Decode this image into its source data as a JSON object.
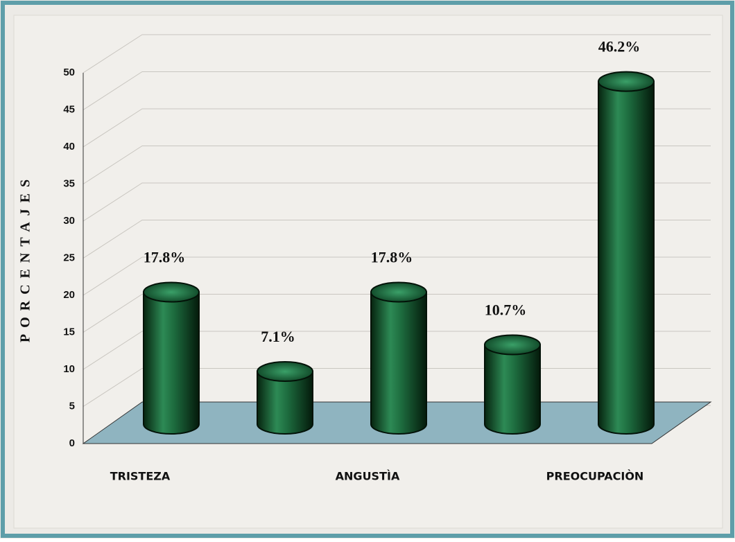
{
  "chart_data": {
    "type": "bar3d-cylinder",
    "y_label": "PORCENTAJES",
    "categories": [
      "TRISTEZA",
      null,
      "ANGUSTÌA",
      null,
      "PREOCUPACIÒN"
    ],
    "values": [
      17.8,
      7.1,
      17.8,
      10.7,
      46.2
    ],
    "value_labels": [
      "17.8%",
      "7.1%",
      "17.8%",
      "10.7%",
      "46.2%"
    ],
    "color": "#1d6b3e",
    "ylim": [
      0,
      50
    ],
    "yticks": [
      0,
      5,
      10,
      15,
      20,
      25,
      30,
      35,
      40,
      45,
      50
    ],
    "grid": true
  }
}
